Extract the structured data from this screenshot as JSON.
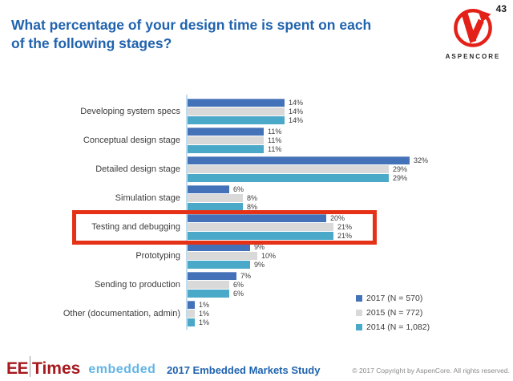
{
  "page_number": "43",
  "title": "What percentage of your design time is spent on each of the following stages?",
  "logo": {
    "brand": "ASPENCORE"
  },
  "chart_data": {
    "type": "bar",
    "orientation": "horizontal",
    "title": "What percentage of your design time is spent on each of the following stages?",
    "categories": [
      "Developing system specs",
      "Conceptual design stage",
      "Detailed design stage",
      "Simulation stage",
      "Testing and debugging",
      "Prototyping",
      "Sending to production",
      "Other (documentation, admin)"
    ],
    "series": [
      {
        "name": "2017",
        "legend": "2017 (N = 570)",
        "color": "#4472B8",
        "values": [
          14,
          11,
          32,
          6,
          20,
          9,
          7,
          1
        ]
      },
      {
        "name": "2015",
        "legend": "2015 (N = 772)",
        "color": "#D9D9D9",
        "values": [
          14,
          11,
          29,
          8,
          21,
          10,
          6,
          1
        ]
      },
      {
        "name": "2014",
        "legend": "2014 (N = 1,082)",
        "color": "#4AA8C8",
        "values": [
          14,
          11,
          29,
          8,
          21,
          9,
          6,
          1
        ]
      }
    ],
    "value_suffix": "%",
    "xlim": [
      0,
      32
    ],
    "grid": false,
    "legend_position": "bottom-right",
    "highlighted_category": "Testing and debugging"
  },
  "colors": {
    "title_blue": "#2063AE",
    "highlight_box_red": "#E53217",
    "axis_line_blue": "#BFDDEE",
    "eetimes_red": "#A6191E",
    "embedded_blue": "#62B5E5",
    "aspencore_red": "#E32119"
  },
  "footer": {
    "eetimes_ee": "EE",
    "eetimes_times": "Times",
    "embedded": "embedded",
    "study": "2017 Embedded Markets Study",
    "copyright": "© 2017 Copyright by AspenCore. All rights reserved."
  }
}
